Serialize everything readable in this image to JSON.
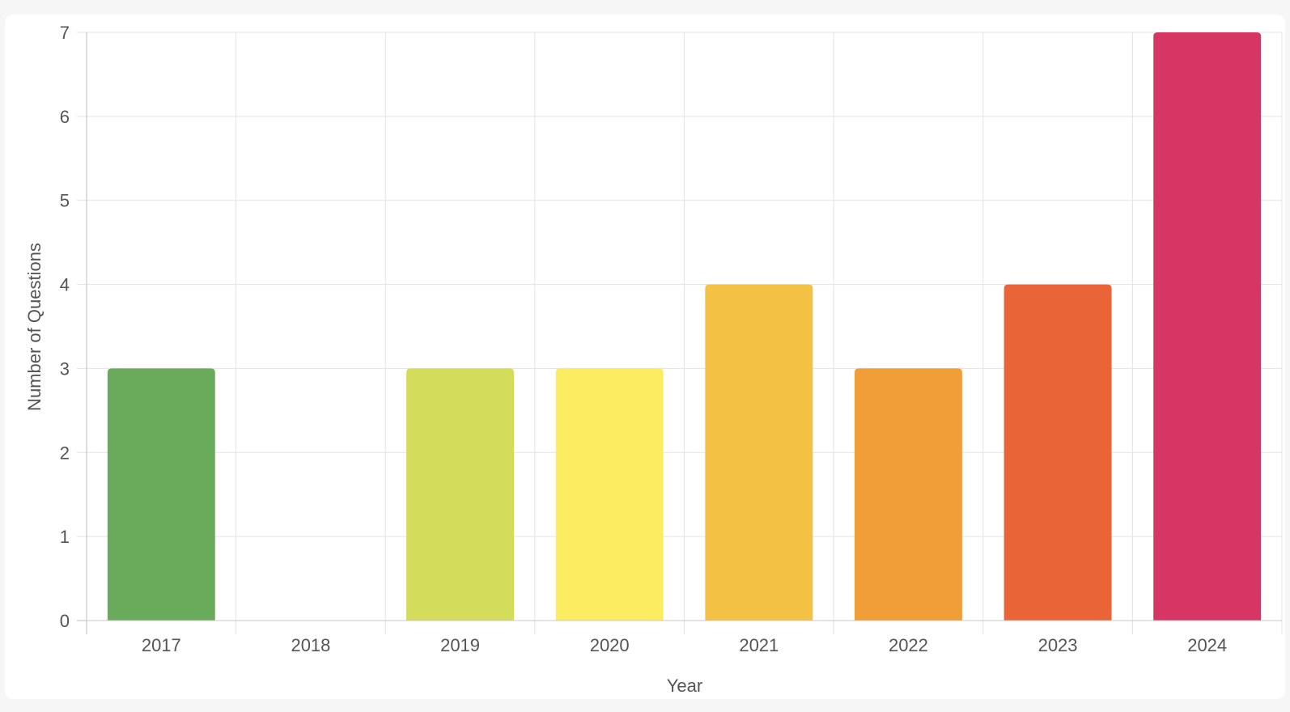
{
  "chart_data": {
    "type": "bar",
    "categories": [
      "2017",
      "2018",
      "2019",
      "2020",
      "2021",
      "2022",
      "2023",
      "2024"
    ],
    "values": [
      3,
      0,
      3,
      3,
      4,
      3,
      4,
      7
    ],
    "colors": [
      "#6aab5b",
      "#6aab5b",
      "#d4dc5c",
      "#fcec62",
      "#f3c244",
      "#f09e38",
      "#e96436",
      "#d53663"
    ],
    "xlabel": "Year",
    "ylabel": "Number of Questions",
    "ylim": [
      0,
      7
    ],
    "yticks": [
      "0",
      "1",
      "2",
      "3",
      "4",
      "5",
      "6",
      "7"
    ],
    "grid": true,
    "legend": "none"
  }
}
